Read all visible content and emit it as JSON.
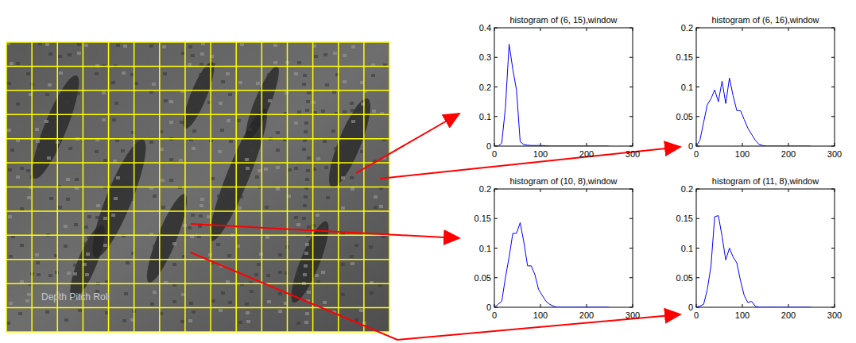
{
  "image": {
    "grid_rows": 12,
    "grid_cols": 15,
    "overlay_text": "Depth Pitch Roll"
  },
  "chart_data": [
    {
      "type": "line",
      "title": "histogram of (6, 15),window",
      "color": "#0000ff",
      "x": [
        0,
        8,
        16,
        24,
        32,
        40,
        48,
        56,
        64,
        72,
        80,
        88,
        96,
        104,
        112,
        120,
        128,
        136,
        144,
        152,
        160,
        168,
        176,
        184,
        192,
        200,
        208,
        216,
        224,
        232,
        240,
        248
      ],
      "values": [
        0,
        0,
        0.01,
        0.13,
        0.345,
        0.26,
        0.19,
        0.015,
        0.005,
        0.003,
        0.002,
        0.002,
        0.002,
        0.002,
        0.001,
        0,
        0,
        0,
        0,
        0,
        0,
        0,
        0,
        0,
        0,
        0,
        0,
        0,
        0,
        0,
        0,
        0
      ],
      "xlim": [
        0,
        300
      ],
      "xticks": [
        0,
        100,
        200,
        300
      ],
      "ylim": [
        0,
        0.4
      ],
      "yticks": [
        0,
        0.1,
        0.2,
        0.3,
        0.4
      ]
    },
    {
      "type": "line",
      "title": "histogram of (6, 16),window",
      "color": "#0000ff",
      "x": [
        0,
        8,
        16,
        24,
        32,
        40,
        48,
        56,
        64,
        72,
        80,
        88,
        96,
        104,
        112,
        120,
        128,
        136,
        144,
        152,
        160,
        168,
        176,
        184,
        192,
        200,
        208,
        216,
        224,
        232,
        240,
        248
      ],
      "values": [
        0,
        0.01,
        0.04,
        0.07,
        0.08,
        0.095,
        0.075,
        0.11,
        0.072,
        0.115,
        0.085,
        0.06,
        0.06,
        0.045,
        0.03,
        0.02,
        0.01,
        0.003,
        0.001,
        0,
        0,
        0,
        0,
        0,
        0,
        0,
        0,
        0,
        0,
        0,
        0,
        0
      ],
      "xlim": [
        0,
        300
      ],
      "xticks": [
        0,
        100,
        200,
        300
      ],
      "ylim": [
        0,
        0.2
      ],
      "yticks": [
        0,
        0.05,
        0.1,
        0.15,
        0.2
      ]
    },
    {
      "type": "line",
      "title": "histogram of (10, 8),window",
      "color": "#0000ff",
      "x": [
        0,
        8,
        16,
        24,
        32,
        40,
        48,
        56,
        64,
        72,
        80,
        88,
        96,
        104,
        112,
        120,
        128,
        136,
        144,
        152,
        160,
        168,
        176,
        184,
        192,
        200,
        208,
        216,
        224,
        232,
        240,
        248
      ],
      "values": [
        0,
        0.005,
        0.01,
        0.05,
        0.085,
        0.125,
        0.125,
        0.143,
        0.11,
        0.07,
        0.07,
        0.055,
        0.03,
        0.02,
        0.01,
        0.005,
        0.002,
        0,
        0,
        0,
        0,
        0,
        0,
        0,
        0,
        0,
        0,
        0,
        0,
        0,
        0,
        0
      ],
      "xlim": [
        0,
        300
      ],
      "xticks": [
        0,
        100,
        200,
        300
      ],
      "ylim": [
        0,
        0.2
      ],
      "yticks": [
        0,
        0.05,
        0.1,
        0.15,
        0.2
      ]
    },
    {
      "type": "line",
      "title": "histogram of (11, 8),window",
      "color": "#0000ff",
      "x": [
        0,
        8,
        16,
        24,
        32,
        40,
        48,
        56,
        64,
        72,
        80,
        88,
        96,
        104,
        112,
        120,
        128,
        136,
        144,
        152,
        160,
        168,
        176,
        184,
        192,
        200,
        208,
        216,
        224,
        232,
        240,
        248
      ],
      "values": [
        0,
        0.002,
        0.005,
        0.03,
        0.07,
        0.153,
        0.155,
        0.12,
        0.08,
        0.1,
        0.085,
        0.075,
        0.045,
        0.02,
        0.008,
        0.01,
        0.002,
        0,
        0,
        0,
        0,
        0,
        0,
        0,
        0,
        0,
        0,
        0,
        0,
        0,
        0,
        0
      ],
      "xlim": [
        0,
        300
      ],
      "xticks": [
        0,
        100,
        200,
        300
      ],
      "ylim": [
        0,
        0.2
      ],
      "yticks": [
        0,
        0.05,
        0.1,
        0.15,
        0.2
      ]
    }
  ]
}
